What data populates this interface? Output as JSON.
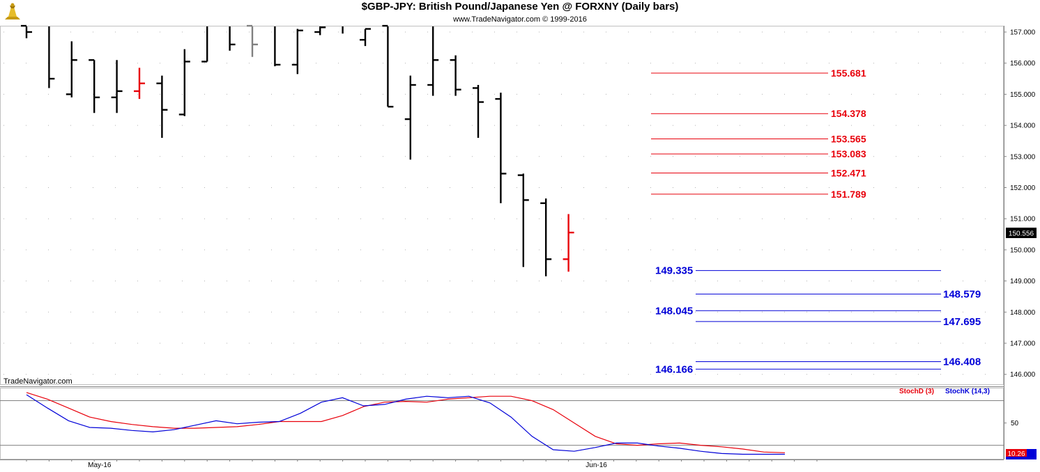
{
  "chart_data": [
    {
      "type": "ohlc",
      "title": "$GBP-JPY:  British Pound/Japanese Yen @ FORXNY  (Daily bars)",
      "subtitle": "www.TradeNavigator.com © 1999-2016",
      "watermark": "TradeNavigator.com",
      "ylim": [
        145.8,
        157.2
      ],
      "y_ticks": [
        "157.000",
        "156.000",
        "155.000",
        "154.000",
        "153.000",
        "152.000",
        "151.000",
        "150.000",
        "149.000",
        "148.000",
        "147.000",
        "146.000"
      ],
      "x_ticks": [
        {
          "label": "May-16",
          "index": 2
        },
        {
          "label": "Jun-16",
          "index": 24
        }
      ],
      "last_price": "150.556",
      "bar_colors": {
        "up_down": "#000000",
        "neutral": "#808080",
        "signal": "#e8000b"
      },
      "bars": [
        {
          "h": 157.6,
          "l": 156.8,
          "o": 157.2,
          "c": 157.0,
          "color": "#000000"
        },
        {
          "h": 157.6,
          "l": 155.2,
          "o": 157.6,
          "c": 155.5,
          "color": "#000000"
        },
        {
          "h": 156.7,
          "l": 154.9,
          "o": 155.0,
          "c": 156.1,
          "color": "#000000"
        },
        {
          "h": 156.1,
          "l": 154.4,
          "o": 156.1,
          "c": 154.9,
          "color": "#000000"
        },
        {
          "h": 156.1,
          "l": 154.4,
          "o": 154.9,
          "c": 155.1,
          "color": "#000000"
        },
        {
          "h": 155.85,
          "l": 154.85,
          "o": 155.1,
          "c": 155.35,
          "color": "#e8000b"
        },
        {
          "h": 155.6,
          "l": 153.6,
          "o": 155.35,
          "c": 154.5,
          "color": "#000000"
        },
        {
          "h": 156.45,
          "l": 154.3,
          "o": 154.35,
          "c": 156.05,
          "color": "#000000"
        },
        {
          "h": 157.7,
          "l": 156.05,
          "o": 156.05,
          "c": 157.4,
          "color": "#000000"
        },
        {
          "h": 157.4,
          "l": 156.4,
          "o": 157.4,
          "c": 156.6,
          "color": "#000000"
        },
        {
          "h": 157.4,
          "l": 156.2,
          "o": 157.2,
          "c": 156.6,
          "color": "#808080"
        },
        {
          "h": 157.4,
          "l": 155.9,
          "o": 157.4,
          "c": 155.95,
          "color": "#000000"
        },
        {
          "h": 157.1,
          "l": 155.65,
          "o": 155.95,
          "c": 157.05,
          "color": "#000000"
        },
        {
          "h": 157.3,
          "l": 156.9,
          "o": 157.0,
          "c": 157.15,
          "color": "#000000"
        },
        {
          "h": 157.4,
          "l": 156.95,
          "o": 157.3,
          "c": 157.3,
          "color": "#000000"
        },
        {
          "h": 157.1,
          "l": 156.55,
          "o": 156.75,
          "c": 157.1,
          "color": "#000000"
        },
        {
          "h": 157.3,
          "l": 154.6,
          "o": 157.2,
          "c": 154.6,
          "color": "#000000"
        },
        {
          "h": 155.6,
          "l": 152.9,
          "o": 154.2,
          "c": 155.3,
          "color": "#000000"
        },
        {
          "h": 157.2,
          "l": 154.95,
          "o": 155.3,
          "c": 156.1,
          "color": "#000000"
        },
        {
          "h": 156.25,
          "l": 154.95,
          "o": 156.1,
          "c": 155.15,
          "color": "#000000"
        },
        {
          "h": 155.3,
          "l": 153.6,
          "o": 155.2,
          "c": 154.75,
          "color": "#000000"
        },
        {
          "h": 155.05,
          "l": 151.5,
          "o": 154.85,
          "c": 152.45,
          "color": "#000000"
        },
        {
          "h": 152.45,
          "l": 149.45,
          "o": 152.4,
          "c": 151.6,
          "color": "#000000"
        },
        {
          "h": 151.65,
          "l": 149.15,
          "o": 151.5,
          "c": 149.7,
          "color": "#000000"
        },
        {
          "h": 151.15,
          "l": 149.3,
          "o": 149.7,
          "c": 150.556,
          "color": "#e8000b"
        }
      ],
      "resistance_levels": [
        "155.681",
        "154.378",
        "153.565",
        "153.083",
        "152.471",
        "151.789"
      ],
      "support_levels": [
        {
          "label": "149.335",
          "side": "left"
        },
        {
          "label": "148.579",
          "side": "right"
        },
        {
          "label": "148.045",
          "side": "left"
        },
        {
          "label": "147.695",
          "side": "right"
        },
        {
          "label": "146.408",
          "side": "right"
        },
        {
          "label": "146.166",
          "side": "left"
        }
      ],
      "level_colors": {
        "resistance": "#e8000b",
        "support": "#0000d8"
      }
    },
    {
      "type": "line",
      "ylim": [
        0,
        100
      ],
      "y_ticks": [
        "50"
      ],
      "reference_lines": [
        80,
        20
      ],
      "series": [
        {
          "name": "StochD (3)",
          "color": "#e8000b",
          "last_label": "10.26",
          "values": [
            91,
            82,
            70,
            58,
            52,
            48,
            45,
            43,
            43,
            44,
            45,
            48,
            52,
            52,
            52,
            60,
            72,
            78,
            79,
            78,
            82,
            84,
            86,
            86,
            80,
            68,
            50,
            32,
            22,
            20,
            22,
            23,
            20,
            18,
            15,
            11,
            10
          ]
        },
        {
          "name": "StochK (14,3)",
          "color": "#0000d8",
          "values": [
            88,
            70,
            53,
            44,
            43,
            40,
            38,
            41,
            47,
            53,
            49,
            51,
            52,
            63,
            78,
            84,
            73,
            75,
            82,
            86,
            84,
            86,
            77,
            58,
            32,
            14,
            12,
            17,
            23,
            23,
            19,
            16,
            12,
            9,
            8,
            8,
            8
          ]
        }
      ]
    }
  ]
}
